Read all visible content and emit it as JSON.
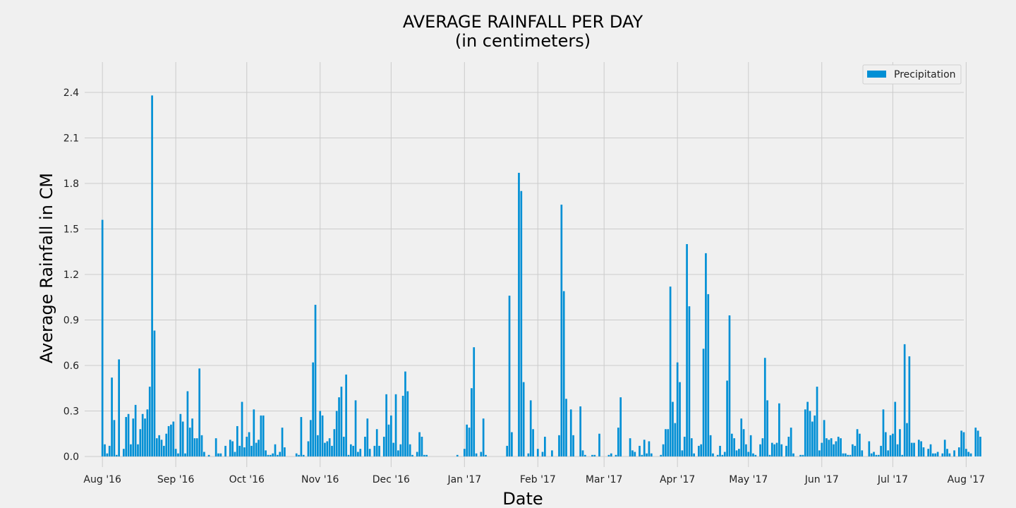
{
  "chart_data": {
    "type": "bar",
    "title": "AVERAGE RAINFALL PER DAY",
    "subtitle": "(in centimeters)",
    "xlabel": "Date",
    "ylabel": "Average Rainfall in CM",
    "ylim": [
      -0.07,
      2.6
    ],
    "yticks": [
      0.0,
      0.3,
      0.6,
      0.9,
      1.2,
      1.5,
      1.8,
      2.1,
      2.4
    ],
    "ytick_labels": [
      "0.0",
      "0.3",
      "0.6",
      "0.9",
      "1.2",
      "1.5",
      "1.8",
      "2.1",
      "2.4"
    ],
    "xlim": [
      -7.5,
      364
    ],
    "xticks": [
      0,
      31,
      61,
      92,
      122,
      153,
      184,
      212,
      243,
      273,
      304,
      334,
      365
    ],
    "xtick_labels": [
      "Aug '16",
      "Sep '16",
      "Oct '16",
      "Nov '16",
      "Dec '16",
      "Jan '17",
      "Feb '17",
      "Mar '17",
      "Apr '17",
      "May '17",
      "Jun '17",
      "Jul '17",
      "Aug '17"
    ],
    "legend": {
      "label": "Precipitation",
      "position": "top-right"
    },
    "color": "#008fd5",
    "series": [
      {
        "name": "Precipitation",
        "start_date": "2016-08-23",
        "values": [
          1.56,
          0.08,
          0.02,
          0.07,
          0.52,
          0.24,
          0.01,
          0.64,
          0.0,
          0.05,
          0.26,
          0.28,
          0.08,
          0.25,
          0.34,
          0.08,
          0.18,
          0.28,
          0.25,
          0.31,
          0.46,
          2.38,
          0.83,
          0.12,
          0.14,
          0.11,
          0.07,
          0.15,
          0.2,
          0.21,
          0.23,
          0.05,
          0.02,
          0.28,
          0.23,
          0.02,
          0.43,
          0.19,
          0.25,
          0.12,
          0.12,
          0.58,
          0.14,
          0.03,
          0.0,
          0.01,
          0.0,
          0.0,
          0.12,
          0.02,
          0.02,
          0.0,
          0.07,
          0.0,
          0.11,
          0.1,
          0.03,
          0.2,
          0.07,
          0.36,
          0.06,
          0.13,
          0.16,
          0.07,
          0.31,
          0.09,
          0.11,
          0.27,
          0.27,
          0.04,
          0.01,
          0.01,
          0.02,
          0.08,
          0.01,
          0.03,
          0.19,
          0.06,
          0.0,
          0.0,
          0.0,
          0.0,
          0.02,
          0.01,
          0.26,
          0.01,
          0.0,
          0.1,
          0.24,
          0.62,
          1.0,
          0.14,
          0.3,
          0.27,
          0.09,
          0.1,
          0.12,
          0.07,
          0.18,
          0.3,
          0.39,
          0.46,
          0.13,
          0.54,
          0.01,
          0.08,
          0.07,
          0.37,
          0.03,
          0.05,
          0.0,
          0.13,
          0.25,
          0.05,
          0.0,
          0.07,
          0.18,
          0.07,
          0.0,
          0.13,
          0.41,
          0.21,
          0.27,
          0.09,
          0.41,
          0.04,
          0.08,
          0.4,
          0.56,
          0.43,
          0.08,
          0.01,
          0.0,
          0.03,
          0.16,
          0.13,
          0.01,
          0.01,
          0.0,
          0.0,
          0.0,
          0.0,
          0.0,
          0.0,
          0.0,
          0.0,
          0.0,
          0.0,
          0.0,
          0.0,
          0.01,
          0.0,
          0.0,
          0.05,
          0.21,
          0.19,
          0.45,
          0.72,
          0.02,
          0.0,
          0.03,
          0.25,
          0.01,
          0.0,
          0.0,
          0.0,
          0.0,
          0.0,
          0.0,
          0.0,
          0.0,
          0.07,
          1.06,
          0.16,
          0.0,
          0.0,
          1.87,
          1.75,
          0.49,
          0.0,
          0.02,
          0.37,
          0.18,
          0.0,
          0.05,
          0.0,
          0.03,
          0.13,
          0.0,
          0.0,
          0.04,
          0.0,
          0.0,
          0.14,
          1.66,
          1.09,
          0.38,
          0.0,
          0.31,
          0.14,
          0.0,
          0.0,
          0.33,
          0.04,
          0.01,
          0.0,
          0.0,
          0.01,
          0.01,
          0.0,
          0.15,
          0.0,
          0.0,
          0.0,
          0.01,
          0.02,
          0.0,
          0.01,
          0.19,
          0.39,
          0.0,
          0.0,
          0.0,
          0.12,
          0.04,
          0.03,
          0.0,
          0.07,
          0.01,
          0.11,
          0.02,
          0.1,
          0.02,
          0.0,
          0.0,
          0.0,
          0.01,
          0.08,
          0.18,
          0.18,
          1.12,
          0.36,
          0.22,
          0.62,
          0.49,
          0.04,
          0.13,
          1.4,
          0.99,
          0.12,
          0.02,
          0.0,
          0.07,
          0.08,
          0.71,
          1.34,
          1.07,
          0.14,
          0.02,
          0.0,
          0.01,
          0.07,
          0.01,
          0.03,
          0.5,
          0.93,
          0.15,
          0.12,
          0.04,
          0.05,
          0.25,
          0.18,
          0.08,
          0.03,
          0.14,
          0.02,
          0.01,
          0.0,
          0.08,
          0.12,
          0.65,
          0.37,
          0.01,
          0.09,
          0.08,
          0.09,
          0.35,
          0.08,
          0.0,
          0.07,
          0.13,
          0.19,
          0.02,
          0.0,
          0.0,
          0.01,
          0.01,
          0.31,
          0.36,
          0.3,
          0.23,
          0.27,
          0.46,
          0.04,
          0.09,
          0.24,
          0.12,
          0.11,
          0.12,
          0.08,
          0.1,
          0.13,
          0.12,
          0.02,
          0.02,
          0.01,
          0.01,
          0.08,
          0.07,
          0.18,
          0.15,
          0.04,
          0.0,
          0.0,
          0.1,
          0.02,
          0.03,
          0.01,
          0.01,
          0.07,
          0.31,
          0.16,
          0.04,
          0.14,
          0.15,
          0.36,
          0.08,
          0.18,
          0.01,
          0.74,
          0.22,
          0.66,
          0.09,
          0.09,
          0.0,
          0.11,
          0.1,
          0.06,
          0.0,
          0.05,
          0.08,
          0.02,
          0.02,
          0.03,
          0.0,
          0.02,
          0.11,
          0.05,
          0.02,
          0.0,
          0.04,
          0.0,
          0.06,
          0.17,
          0.16,
          0.05,
          0.03,
          0.02,
          0.0,
          0.19,
          0.17,
          0.13
        ]
      }
    ]
  }
}
